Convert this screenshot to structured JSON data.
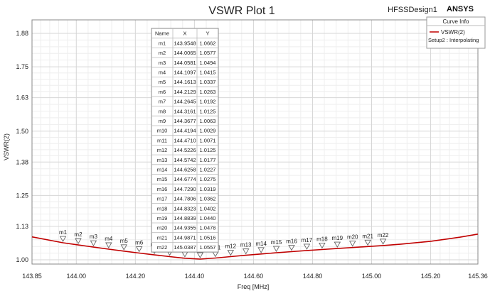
{
  "header": {
    "title": "VSWR Plot 1",
    "design_name": "HFSSDesign1",
    "brand": "ANSYS"
  },
  "legend": {
    "title": "Curve Info",
    "entry": "VSWR(2)",
    "sub": "Setup2 : Interpolating"
  },
  "marker_table": {
    "headers": [
      "Name",
      "X",
      "Y"
    ]
  },
  "colors": {
    "curve": "#c00000",
    "marker": "#666666",
    "grid": "#d6d6d6",
    "frame": "#888888"
  },
  "chart_data": {
    "type": "line",
    "title": "VSWR Plot 1",
    "xlabel": "Freq [MHz]",
    "ylabel": "VSWR(2)",
    "xlim": [
      143.85,
      145.36
    ],
    "ylim": [
      0.9836,
      1.9323
    ],
    "xticks": [
      "143.85",
      "144.00",
      "144.20",
      "144.40",
      "144.60",
      "144.80",
      "145.00",
      "145.20",
      "145.36"
    ],
    "yticks": [
      "1.88",
      "1.75",
      "1.63",
      "1.50",
      "1.38",
      "1.25",
      "1.13",
      "1.00"
    ],
    "grid": true,
    "legend_position": "top-right",
    "series": [
      {
        "name": "VSWR(2)",
        "x": [
          143.85,
          143.9548,
          144.0065,
          144.0581,
          144.1097,
          144.1613,
          144.2129,
          144.2645,
          144.3161,
          144.3677,
          144.4194,
          144.471,
          144.5226,
          144.5742,
          144.6258,
          144.6774,
          144.729,
          144.7806,
          144.8323,
          144.8839,
          144.9355,
          144.9871,
          145.0387,
          145.1,
          145.2,
          145.3,
          145.36
        ],
        "y": [
          1.0893,
          1.0662,
          1.0577,
          1.0494,
          1.0415,
          1.0337,
          1.0263,
          1.0192,
          1.0125,
          1.0063,
          1.0029,
          1.0071,
          1.0125,
          1.0177,
          1.0227,
          1.0275,
          1.0319,
          1.0362,
          1.0402,
          1.044,
          1.0478,
          1.0516,
          1.0557,
          1.061,
          1.072,
          1.088,
          1.1
        ]
      }
    ],
    "markers": [
      {
        "name": "m1",
        "x": "143.9548",
        "y": "1.0662"
      },
      {
        "name": "m2",
        "x": "144.0065",
        "y": "1.0577"
      },
      {
        "name": "m3",
        "x": "144.0581",
        "y": "1.0494"
      },
      {
        "name": "m4",
        "x": "144.1097",
        "y": "1.0415"
      },
      {
        "name": "m5",
        "x": "144.1613",
        "y": "1.0337"
      },
      {
        "name": "m6",
        "x": "144.2129",
        "y": "1.0263"
      },
      {
        "name": "m7",
        "x": "144.2645",
        "y": "1.0192"
      },
      {
        "name": "m8",
        "x": "144.3161",
        "y": "1.0125"
      },
      {
        "name": "m9",
        "x": "144.3677",
        "y": "1.0063"
      },
      {
        "name": "m10",
        "x": "144.4194",
        "y": "1.0029"
      },
      {
        "name": "m11",
        "x": "144.4710",
        "y": "1.0071"
      },
      {
        "name": "m12",
        "x": "144.5226",
        "y": "1.0125"
      },
      {
        "name": "m13",
        "x": "144.5742",
        "y": "1.0177"
      },
      {
        "name": "m14",
        "x": "144.6258",
        "y": "1.0227"
      },
      {
        "name": "m15",
        "x": "144.6774",
        "y": "1.0275"
      },
      {
        "name": "m16",
        "x": "144.7290",
        "y": "1.0319"
      },
      {
        "name": "m17",
        "x": "144.7806",
        "y": "1.0362"
      },
      {
        "name": "m18",
        "x": "144.8323",
        "y": "1.0402"
      },
      {
        "name": "m19",
        "x": "144.8839",
        "y": "1.0440"
      },
      {
        "name": "m20",
        "x": "144.9355",
        "y": "1.0478"
      },
      {
        "name": "m21",
        "x": "144.9871",
        "y": "1.0516"
      },
      {
        "name": "m22",
        "x": "145.0387",
        "y": "1.0557"
      }
    ]
  }
}
